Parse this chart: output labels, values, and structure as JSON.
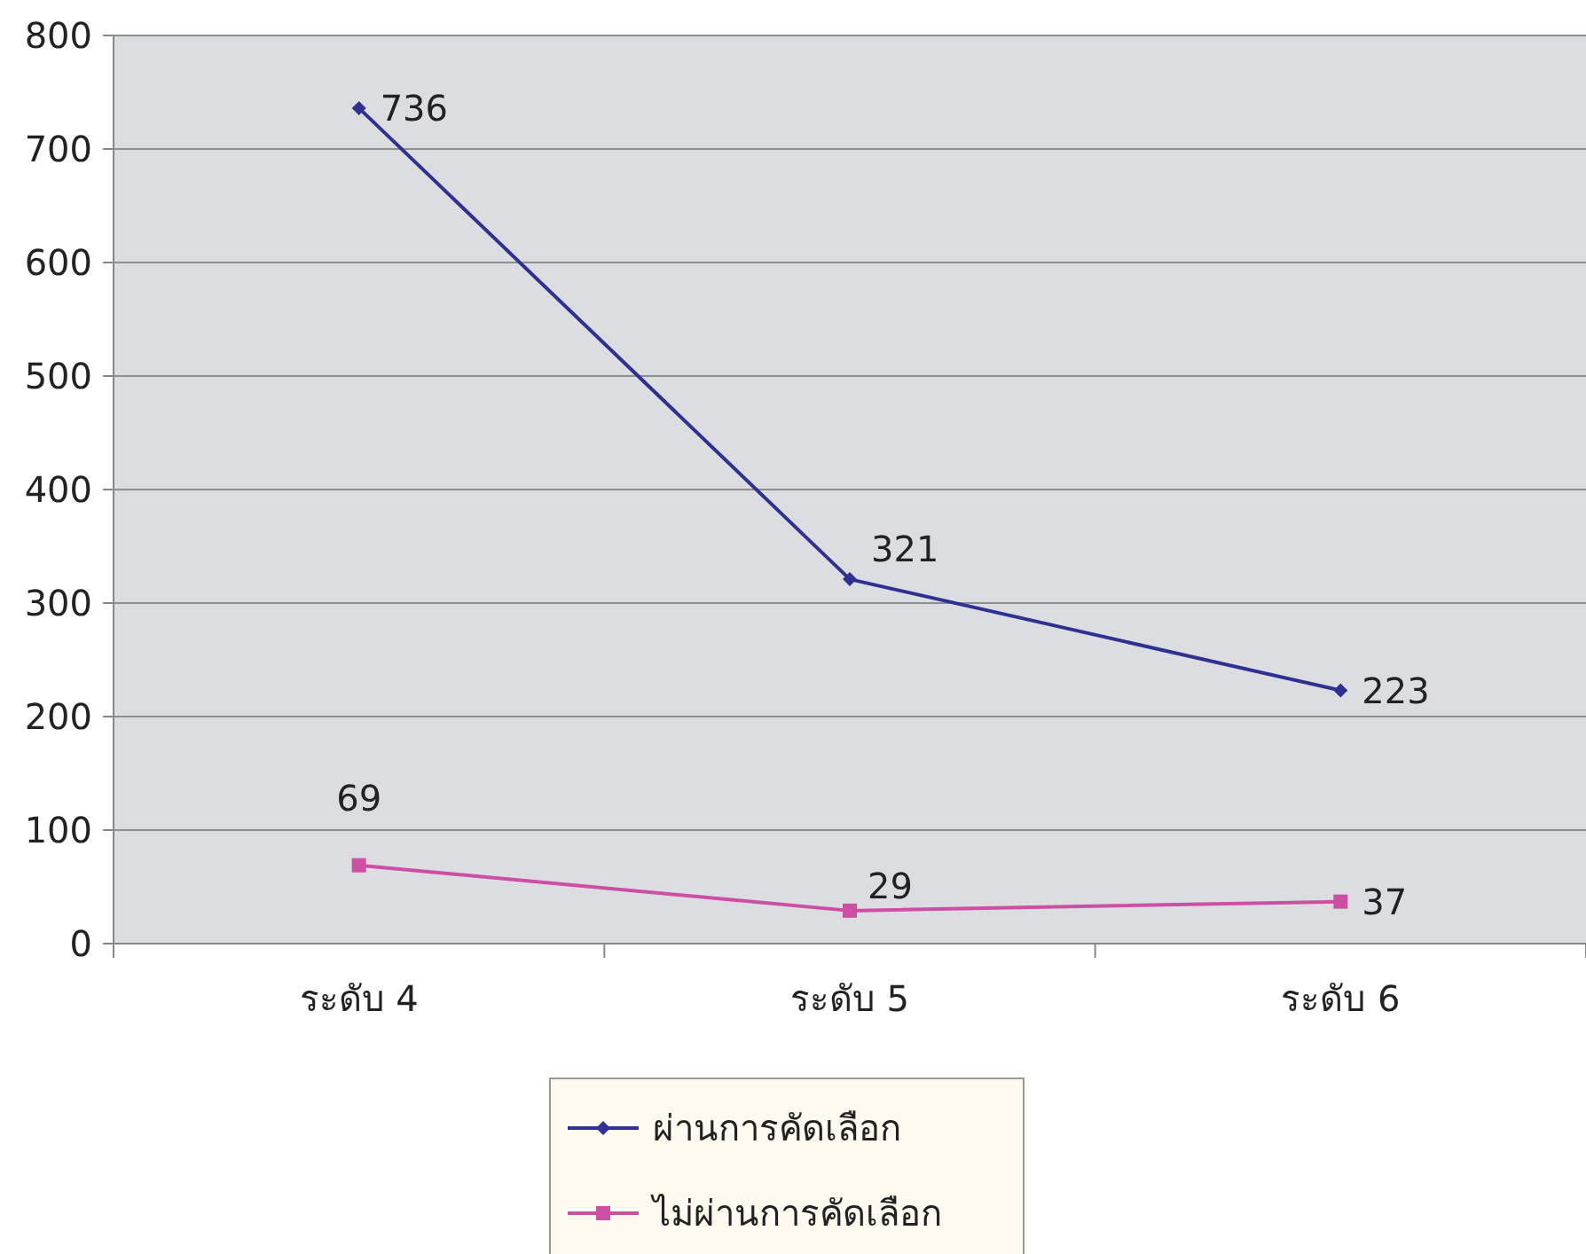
{
  "chart_data": {
    "type": "line",
    "categories": [
      "ระดับ 4",
      "ระดับ 5",
      "ระดับ 6"
    ],
    "series": [
      {
        "name": "ผ่านการคัดเลือก",
        "color": "#2e3192",
        "marker": "diamond",
        "values": [
          736,
          321,
          223
        ]
      },
      {
        "name": "ไม่ผ่านการคัดเลือก",
        "color": "#cc4fa3",
        "marker": "square",
        "values": [
          69,
          29,
          37
        ]
      }
    ],
    "ylim": [
      0,
      800
    ],
    "yticks": [
      0,
      100,
      200,
      300,
      400,
      500,
      600,
      700,
      800
    ],
    "grid": "y",
    "legend": "bottom",
    "data_labels": true,
    "line_style": "solid"
  }
}
